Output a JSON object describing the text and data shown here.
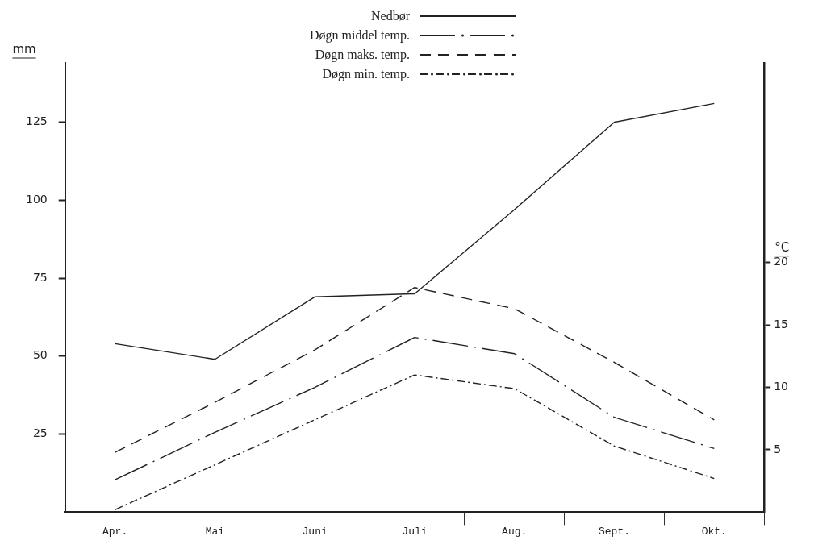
{
  "chart_data": {
    "type": "line",
    "ylabel": "mm",
    "y2label": "°C",
    "categories": [
      "Apr.",
      "Mai",
      "Juni",
      "Juli",
      "Aug.",
      "Sept.",
      "Okt."
    ],
    "series": [
      {
        "name": "Nedbør",
        "color": "#222222",
        "line_style": "solid",
        "values": [
          54,
          49,
          69,
          70,
          97,
          125,
          131
        ]
      },
      {
        "name": "Døgn middel temp.",
        "color": "#222222",
        "line_style": "longdashdot",
        "axis": "y2",
        "values": [
          2.6,
          6.4,
          10,
          14,
          12.7,
          7.6,
          5.1
        ]
      },
      {
        "name": "Døgn maks. temp.",
        "color": "#222222",
        "line_style": "dashed",
        "axis": "y2",
        "values": [
          4.8,
          8.8,
          13,
          18,
          16.3,
          12,
          7.4
        ]
      },
      {
        "name": "Døgn min. temp.",
        "color": "#222222",
        "line_style": "dashdot",
        "axis": "y2",
        "values": [
          0.2,
          3.8,
          7.4,
          11,
          9.9,
          5.3,
          2.7
        ]
      }
    ],
    "ylim": [
      0,
      144
    ],
    "yticks": [
      25,
      50,
      75,
      100,
      125
    ],
    "y2lim": [
      0,
      36
    ],
    "y2ticks": [
      5,
      10,
      15,
      20
    ],
    "grid": false,
    "legend": "top",
    "marker": "none"
  }
}
